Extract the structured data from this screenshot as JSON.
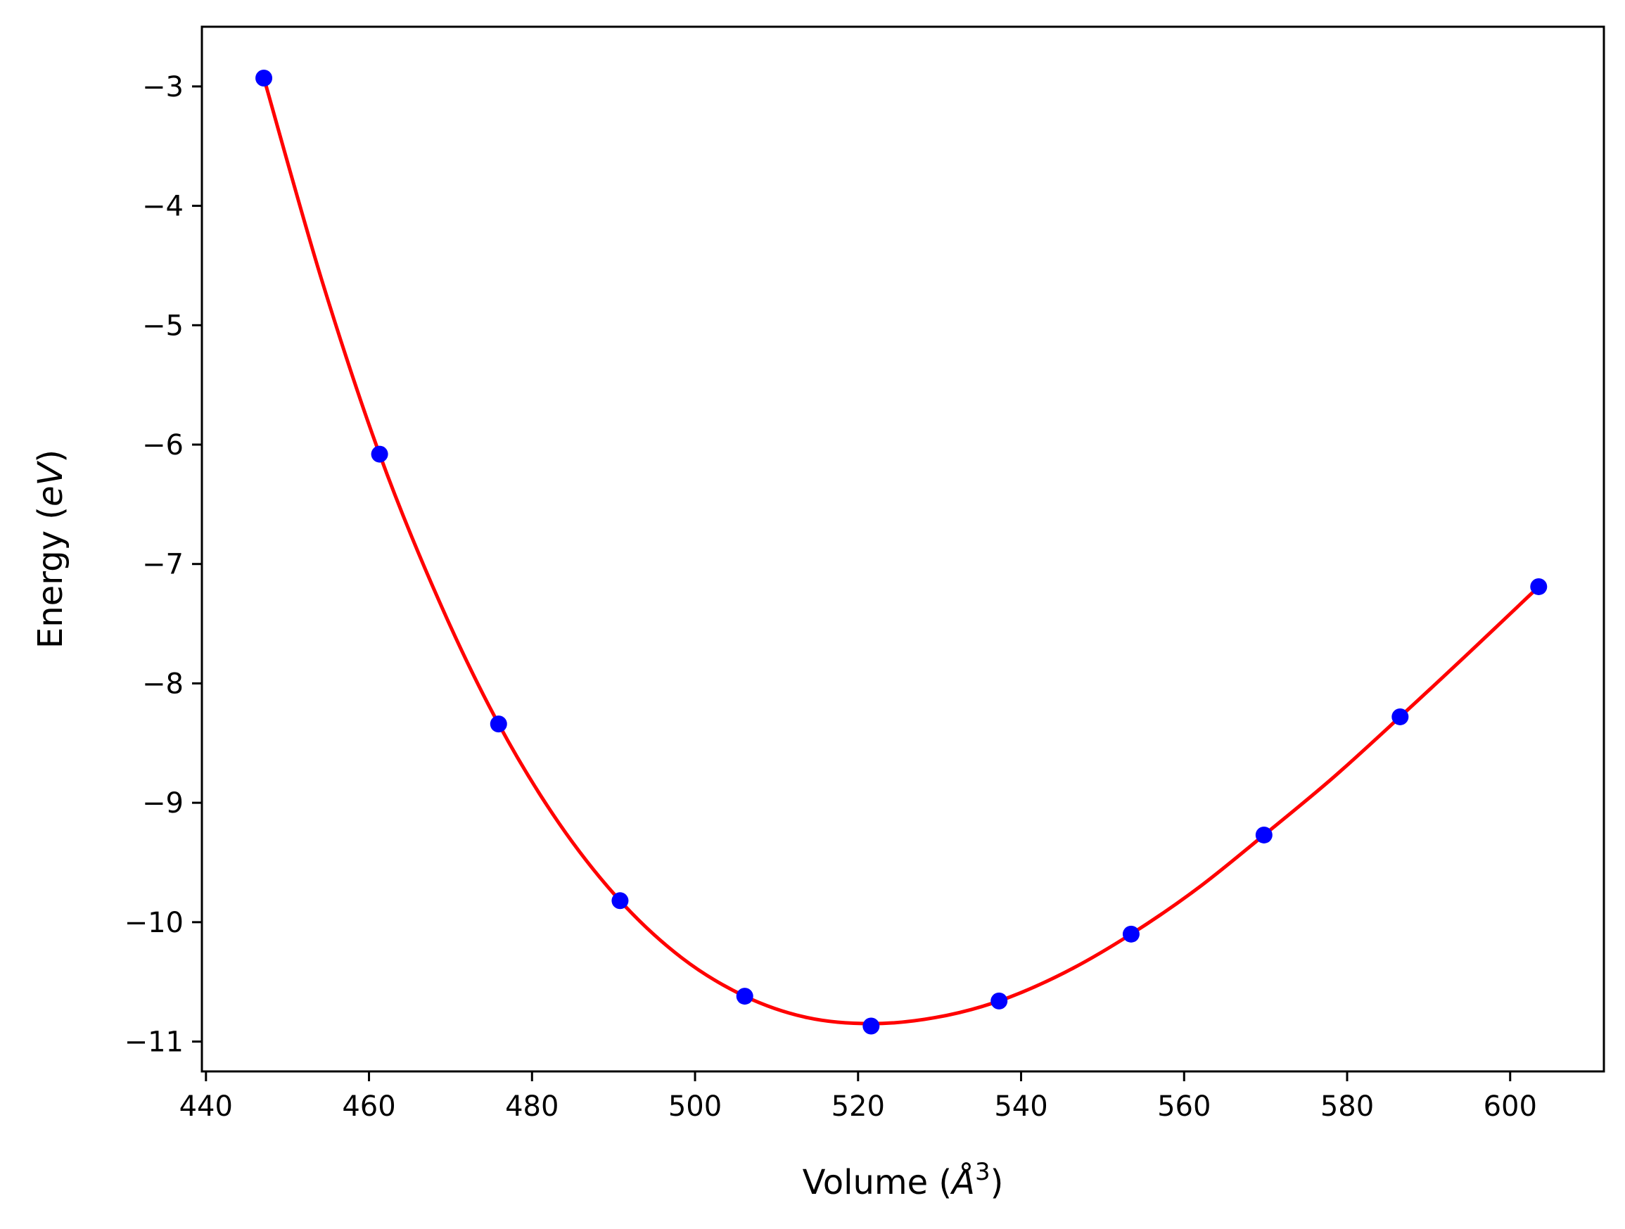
{
  "chart_data": {
    "type": "scatter",
    "title": "",
    "xlabel": "Volume (Å³)",
    "xlabel_parts": {
      "prefix": "Volume (",
      "symbol": "Å",
      "exponent": "3",
      "suffix": ")"
    },
    "ylabel": "Energy (eV)",
    "ylabel_parts": {
      "prefix": "Energy (",
      "unit": "eV",
      "suffix": ")"
    },
    "xlim": [
      439.5,
      611.5
    ],
    "ylim": [
      -11.25,
      -2.5
    ],
    "xticks": [
      440,
      460,
      480,
      500,
      520,
      540,
      560,
      580,
      600
    ],
    "xtick_labels": [
      "440",
      "460",
      "480",
      "500",
      "520",
      "540",
      "560",
      "580",
      "600"
    ],
    "yticks": [
      -3,
      -4,
      -5,
      -6,
      -7,
      -8,
      -9,
      -10,
      -11
    ],
    "ytick_labels": [
      "−3",
      "−4",
      "−5",
      "−6",
      "−7",
      "−8",
      "−9",
      "−10",
      "−11"
    ],
    "grid": false,
    "legend": "none",
    "series": [
      {
        "kind": "points",
        "color": "#0000ff",
        "x": [
          447.1,
          461.3,
          475.9,
          490.8,
          506.1,
          521.6,
          537.3,
          553.5,
          569.8,
          586.5,
          603.5
        ],
        "y": [
          -2.93,
          -6.08,
          -8.34,
          -9.82,
          -10.62,
          -10.87,
          -10.66,
          -10.1,
          -9.27,
          -8.28,
          -7.19
        ]
      },
      {
        "kind": "fit-curve",
        "color": "#ff0000",
        "x": [
          447.1,
          454.2,
          461.3,
          468.6,
          475.9,
          483.3,
          490.8,
          498.4,
          506.1,
          513.8,
          521.6,
          529.4,
          537.3,
          545.4,
          553.5,
          561.6,
          569.8,
          578.1,
          586.5,
          595.0,
          603.5
        ],
        "y": [
          -2.93,
          -4.62,
          -6.08,
          -7.31,
          -8.34,
          -9.17,
          -9.82,
          -10.3,
          -10.62,
          -10.8,
          -10.85,
          -10.8,
          -10.66,
          -10.42,
          -10.1,
          -9.72,
          -9.27,
          -8.8,
          -8.28,
          -7.74,
          -7.19
        ]
      }
    ]
  }
}
